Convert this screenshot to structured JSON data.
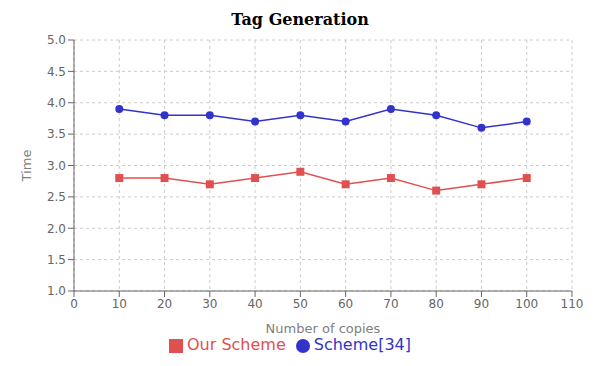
{
  "chart_data": {
    "type": "line",
    "title": "Tag Generation",
    "xlabel": "Number of copies",
    "ylabel": "Time",
    "x": [
      10,
      20,
      30,
      40,
      50,
      60,
      70,
      80,
      90,
      100
    ],
    "series": [
      {
        "name": "Our Scheme",
        "color": "#e05050",
        "marker": "square",
        "values": [
          2.8,
          2.8,
          2.7,
          2.8,
          2.9,
          2.7,
          2.8,
          2.6,
          2.7,
          2.8
        ]
      },
      {
        "name": "Scheme[34]",
        "color": "#3333cc",
        "marker": "circle",
        "values": [
          3.9,
          3.8,
          3.8,
          3.7,
          3.8,
          3.7,
          3.9,
          3.8,
          3.6,
          3.7
        ]
      }
    ],
    "xlim": [
      0,
      110
    ],
    "ylim": [
      1.0,
      5.0
    ],
    "xticks": [
      0,
      10,
      20,
      30,
      40,
      50,
      60,
      70,
      80,
      90,
      100,
      110
    ],
    "yticks": [
      {
        "value": 1,
        "label": "1.0"
      },
      1.5,
      {
        "value": 2,
        "label": "2.0"
      },
      2.5,
      {
        "value": 3,
        "label": "3.0"
      },
      3.5,
      {
        "value": 4,
        "label": "4.0"
      },
      4.5,
      {
        "value": 5,
        "label": "5.0"
      }
    ],
    "grid": true,
    "legend": "bottom"
  }
}
